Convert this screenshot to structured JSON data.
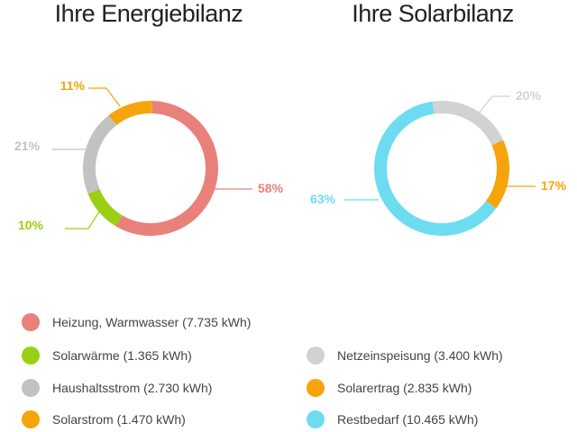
{
  "chart_data": [
    {
      "type": "pie",
      "title": "Ihre Energiebilanz",
      "slices": [
        {
          "label": "Heizung, Warmwasser (7.735 kWh)",
          "pct_label": "58%",
          "value": 7735,
          "color": "#e8817a"
        },
        {
          "label": "Solarwärme (1.365 kWh)",
          "pct_label": "10%",
          "value": 1365,
          "color": "#9bcf14"
        },
        {
          "label": "Haushaltsstrom (2.730 kWh)",
          "pct_label": "21%",
          "value": 2730,
          "color": "#c2c2c2"
        },
        {
          "label": "Solarstrom (1.470 kWh)",
          "pct_label": "11%",
          "value": 1470,
          "color": "#f5a50a"
        }
      ]
    },
    {
      "type": "pie",
      "title": "Ihre Solarbilanz",
      "slices": [
        {
          "label": "Netzeinspeisung (3.400 kWh)",
          "pct_label": "20%",
          "value": 3400,
          "color": "#d2d2d2"
        },
        {
          "label": "Solarertrag (2.835 kWh)",
          "pct_label": "17%",
          "value": 2835,
          "color": "#f5a50a"
        },
        {
          "label": "Restbedarf (10.465 kWh)",
          "pct_label": "63%",
          "value": 10465,
          "color": "#6ddcf1"
        }
      ]
    }
  ]
}
